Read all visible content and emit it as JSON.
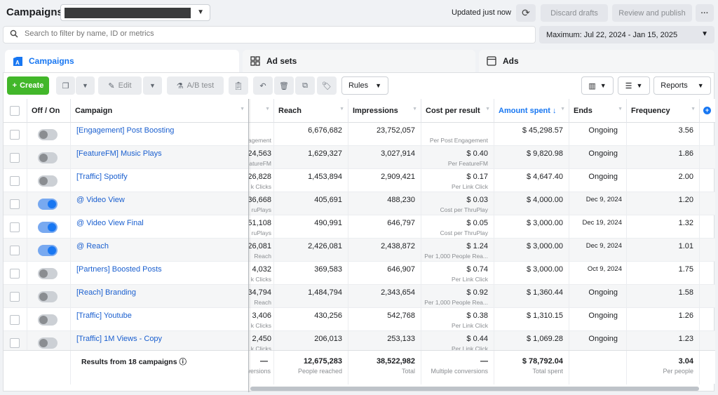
{
  "header": {
    "title": "Campaigns",
    "updated": "Updated just now",
    "discard_label": "Discard drafts",
    "publish_label": "Review and publish",
    "more_label": "···"
  },
  "search": {
    "placeholder": "Search to filter by name, ID or metrics",
    "date_range": "Maximum: Jul 22, 2024 - Jan 15, 2025"
  },
  "tabs": [
    {
      "label": "Campaigns",
      "active": true
    },
    {
      "label": "Ad sets",
      "active": false
    },
    {
      "label": "Ads",
      "active": false
    }
  ],
  "toolbar": {
    "create": "Create",
    "edit": "Edit",
    "ab_test": "A/B test",
    "rules": "Rules",
    "reports": "Reports"
  },
  "columns": {
    "off_on": "Off / On",
    "campaign": "Campaign",
    "reach": "Reach",
    "impressions": "Impressions",
    "cost_per_result": "Cost per result",
    "amount_spent": "Amount spent ↓",
    "ends": "Ends",
    "frequency": "Frequency"
  },
  "rows": [
    {
      "on": false,
      "name": "[Engagement] Post Boosting",
      "results": "",
      "results_sub": "agement",
      "reach": "6,676,682",
      "impressions": "23,752,057",
      "cpr": "",
      "cpr_sub": "Per Post Engagement",
      "spent": "$ 45,298.57",
      "ends": "Ongoing",
      "freq": "3.56"
    },
    {
      "on": false,
      "name": "[FeatureFM] Music Plays",
      "results": "24,563",
      "results_sub": "atureFM",
      "reach": "1,629,327",
      "impressions": "3,027,914",
      "cpr": "$ 0.40",
      "cpr_sub": "Per FeatureFM",
      "spent": "$ 9,820.98",
      "ends": "Ongoing",
      "freq": "1.86"
    },
    {
      "on": false,
      "name": "[Traffic] Spotify",
      "results": "26,828",
      "results_sub": "k Clicks",
      "reach": "1,453,894",
      "impressions": "2,909,421",
      "cpr": "$ 0.17",
      "cpr_sub": "Per Link Click",
      "spent": "$ 4,647.40",
      "ends": "Ongoing",
      "freq": "2.00"
    },
    {
      "on": true,
      "name": "@ Video View",
      "results": "36,668",
      "results_sub": "ruPlays",
      "reach": "405,691",
      "impressions": "488,230",
      "cpr": "$ 0.03",
      "cpr_sub": "Cost per ThruPlay",
      "spent": "$ 4,000.00",
      "ends": "Dec 9, 2024",
      "freq": "1.20"
    },
    {
      "on": true,
      "name": "@ Video View Final",
      "results": "51,108",
      "results_sub": "ruPlays",
      "reach": "490,991",
      "impressions": "646,797",
      "cpr": "$ 0.05",
      "cpr_sub": "Cost per ThruPlay",
      "spent": "$ 3,000.00",
      "ends": "Dec 19, 2024",
      "freq": "1.32"
    },
    {
      "on": true,
      "name": "@ Reach",
      "results": "26,081",
      "results_sub": "Reach",
      "reach": "2,426,081",
      "impressions": "2,438,872",
      "cpr": "$ 1.24",
      "cpr_sub": "Per 1,000 People Rea...",
      "spent": "$ 3,000.00",
      "ends": "Dec 9, 2024",
      "freq": "1.01"
    },
    {
      "on": false,
      "name": "[Partners] Boosted Posts",
      "results": "4,032",
      "results_sub": "k Clicks",
      "reach": "369,583",
      "impressions": "646,907",
      "cpr": "$ 0.74",
      "cpr_sub": "Per Link Click",
      "spent": "$ 3,000.00",
      "ends": "Oct 9, 2024",
      "freq": "1.75"
    },
    {
      "on": false,
      "name": "[Reach] Branding",
      "results": "34,794",
      "results_sub": "Reach",
      "reach": "1,484,794",
      "impressions": "2,343,654",
      "cpr": "$ 0.92",
      "cpr_sub": "Per 1,000 People Rea...",
      "spent": "$ 1,360.44",
      "ends": "Ongoing",
      "freq": "1.58"
    },
    {
      "on": false,
      "name": "[Traffic] Youtube",
      "results": "3,406",
      "results_sub": "k Clicks",
      "reach": "430,256",
      "impressions": "542,768",
      "cpr": "$ 0.38",
      "cpr_sub": "Per Link Click",
      "spent": "$ 1,310.15",
      "ends": "Ongoing",
      "freq": "1.26"
    },
    {
      "on": false,
      "name": "[Traffic] 1M Views - Copy",
      "results": "2,450",
      "results_sub": "k Clicks",
      "reach": "206,013",
      "impressions": "253,133",
      "cpr": "$ 0.44",
      "cpr_sub": "Per Link Click",
      "spent": "$ 1,069.28",
      "ends": "Ongoing",
      "freq": "1.23"
    }
  ],
  "totals": {
    "label": "Results from 18 campaigns",
    "results": "—",
    "results_sub": "onversions",
    "reach": "12,675,283",
    "reach_sub": "People reached",
    "impressions": "38,522,982",
    "impressions_sub": "Total",
    "cpr": "—",
    "cpr_sub": "Multiple conversions",
    "spent": "$ 78,792.04",
    "spent_sub": "Total spent",
    "freq": "3.04",
    "freq_sub": "Per people"
  },
  "colors": {
    "accent": "#1877f2",
    "create_green": "#42b72a",
    "link": "#1a5fcf"
  }
}
